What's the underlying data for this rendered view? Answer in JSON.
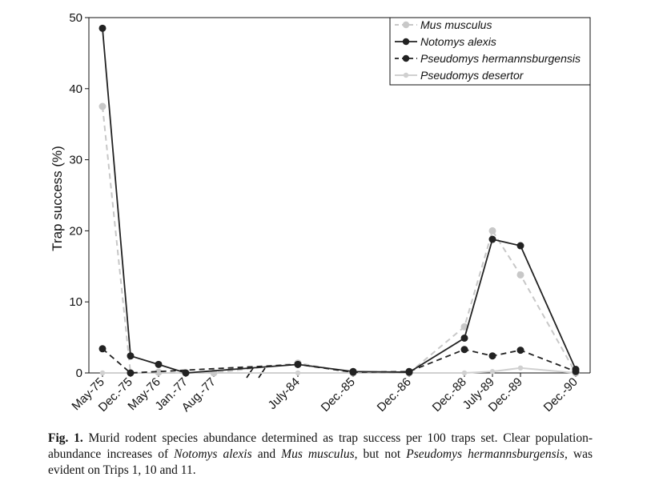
{
  "chart_data": {
    "type": "line",
    "ylabel": "Trap success (%)",
    "xlabel": "",
    "ylim": [
      0,
      50
    ],
    "yticks": [
      0,
      10,
      20,
      30,
      40,
      50
    ],
    "grid": false,
    "legend_position": "top-right",
    "axis_break": "between Aug.-77 and July-84",
    "categories": [
      "May-75",
      "Dec.-75",
      "May-76",
      "Jan.-77",
      "Aug.-77",
      "July-84",
      "Dec.-85",
      "Dec.-86",
      "Dec.-88",
      "July-89",
      "Dec.-89",
      "Dec.-90"
    ],
    "series": [
      {
        "name": "Mus musculus",
        "color": "#c8c8c8",
        "dashed": true,
        "points": [
          {
            "x": "May-75",
            "y": 37.5
          },
          {
            "x": "Dec.-75",
            "y": 0
          },
          {
            "x": "May-76",
            "y": 0.1
          },
          {
            "x": "Jan.-77",
            "y": 0
          },
          {
            "x": "Aug.-77",
            "y": 0
          },
          {
            "x": "July-84",
            "y": 1.4
          },
          {
            "x": "Dec.-85",
            "y": 0
          },
          {
            "x": "Dec.-86",
            "y": 0
          },
          {
            "x": "Dec.-88",
            "y": 6.5
          },
          {
            "x": "July-89",
            "y": 20
          },
          {
            "x": "Dec.-89",
            "y": 13.8
          },
          {
            "x": "Dec.-90",
            "y": 0
          }
        ]
      },
      {
        "name": "Notomys alexis",
        "color": "#222222",
        "dashed": false,
        "points": [
          {
            "x": "May-75",
            "y": 48.5
          },
          {
            "x": "Dec.-75",
            "y": 2.4
          },
          {
            "x": "May-76",
            "y": 1.2
          },
          {
            "x": "Jan.-77",
            "y": 0
          },
          {
            "x": "July-84",
            "y": 1.2
          },
          {
            "x": "Dec.-85",
            "y": 0.2
          },
          {
            "x": "Dec.-86",
            "y": 0.1
          },
          {
            "x": "Dec.-88",
            "y": 4.9
          },
          {
            "x": "July-89",
            "y": 18.8
          },
          {
            "x": "Dec.-89",
            "y": 17.9
          },
          {
            "x": "Dec.-90",
            "y": 0.5
          }
        ]
      },
      {
        "name": "Pseudomys hermannsburgensis",
        "color": "#222222",
        "dashed": true,
        "points": [
          {
            "x": "May-75",
            "y": 3.4
          },
          {
            "x": "Dec.-75",
            "y": 0
          },
          {
            "x": "July-84",
            "y": 1.2
          },
          {
            "x": "Dec.-85",
            "y": 0.1
          },
          {
            "x": "Dec.-86",
            "y": 0.2
          },
          {
            "x": "Dec.-88",
            "y": 3.3
          },
          {
            "x": "July-89",
            "y": 2.4
          },
          {
            "x": "Dec.-89",
            "y": 3.2
          },
          {
            "x": "Dec.-90",
            "y": 0.2
          }
        ]
      },
      {
        "name": "Pseudomys desertor",
        "color": "#d0d0d0",
        "dashed": false,
        "points": [
          {
            "x": "May-75",
            "y": 0
          },
          {
            "x": "Dec.-75",
            "y": 0
          },
          {
            "x": "July-84",
            "y": 0
          },
          {
            "x": "Dec.-85",
            "y": 0
          },
          {
            "x": "Dec.-86",
            "y": 0
          },
          {
            "x": "Dec.-88",
            "y": 0
          },
          {
            "x": "July-89",
            "y": 0.2
          },
          {
            "x": "Dec.-89",
            "y": 0.7
          },
          {
            "x": "Dec.-90",
            "y": 0
          }
        ]
      }
    ]
  },
  "caption": {
    "lead": "Fig. 1.",
    "text_1": " Murid rodent species abundance determined as trap success per 100 traps set. Clear population-abundance increases of ",
    "species_1": "Notomys alexis",
    "text_2": " and ",
    "species_2": "Mus musculus",
    "text_3": ", but not ",
    "species_3": "Pseudomys hermannsburgensis",
    "text_4": ", was evident on Trips 1, 10 and 11."
  }
}
